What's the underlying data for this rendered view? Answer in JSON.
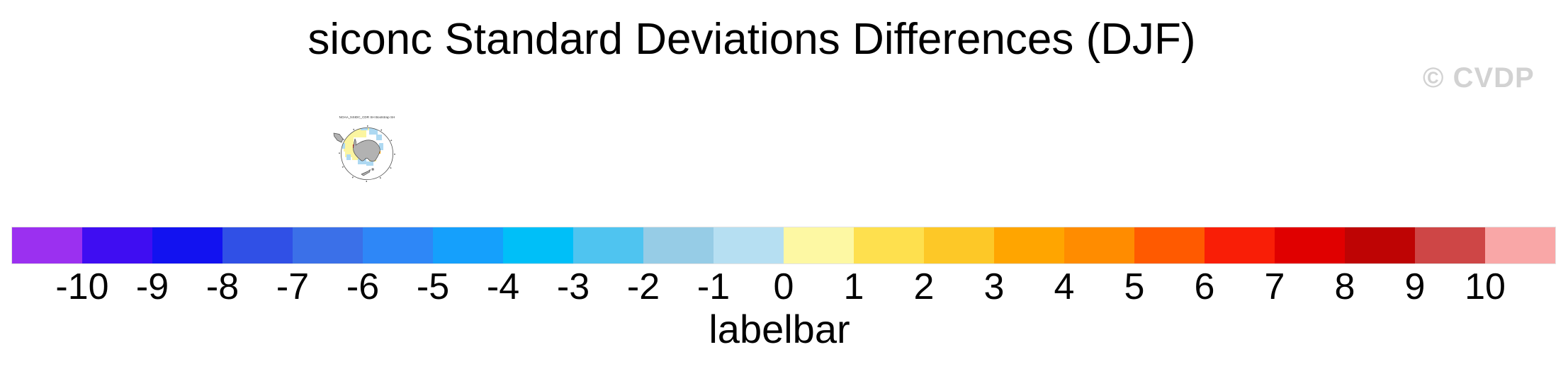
{
  "title": "siconc Standard Deviations Differences (DJF)",
  "watermark": "© CVDP",
  "thumbnail": {
    "title": "NOAA_NSIDC_CDR SH Bootstrap SH",
    "colors": {
      "land": "#b2b2b2",
      "coast_outline": "#4d4d4d",
      "positive_diff_patch": "#fbf5a0",
      "negative_diff_patch": "#aed9f2",
      "strong_negative_spot": "#dd0000",
      "strong_positive_spot": "#ffa500"
    }
  },
  "chart_data": {
    "type": "heatmap",
    "title": "siconc Standard Deviations Differences (DJF)",
    "caption": "labelbar",
    "panel": "south polar stereographic mini-map of siconc standard deviation differences",
    "colorbar": {
      "orientation": "horizontal",
      "tick_labels": [
        "-10",
        "-9",
        "-8",
        "-7",
        "-6",
        "-5",
        "-4",
        "-3",
        "-2",
        "-1",
        "0",
        "1",
        "2",
        "3",
        "4",
        "5",
        "6",
        "7",
        "8",
        "9",
        "10"
      ],
      "segment_colors": [
        "#9B30F0",
        "#3F0DF2",
        "#1212F0",
        "#3050E6",
        "#3B70E8",
        "#2E87F7",
        "#15A0FC",
        "#00BFF8",
        "#4FC4F0",
        "#96CCE6",
        "#B6DFF2",
        "#FDF8A3",
        "#FEE04E",
        "#FDC827",
        "#FFA500",
        "#FF8C00",
        "#FF5A00",
        "#F91E06",
        "#E00000",
        "#BE0404",
        "#CE4646",
        "#F9A7A7"
      ],
      "bins_note": "22 discrete bins; outermost bins represent < -10 and > 10"
    }
  }
}
